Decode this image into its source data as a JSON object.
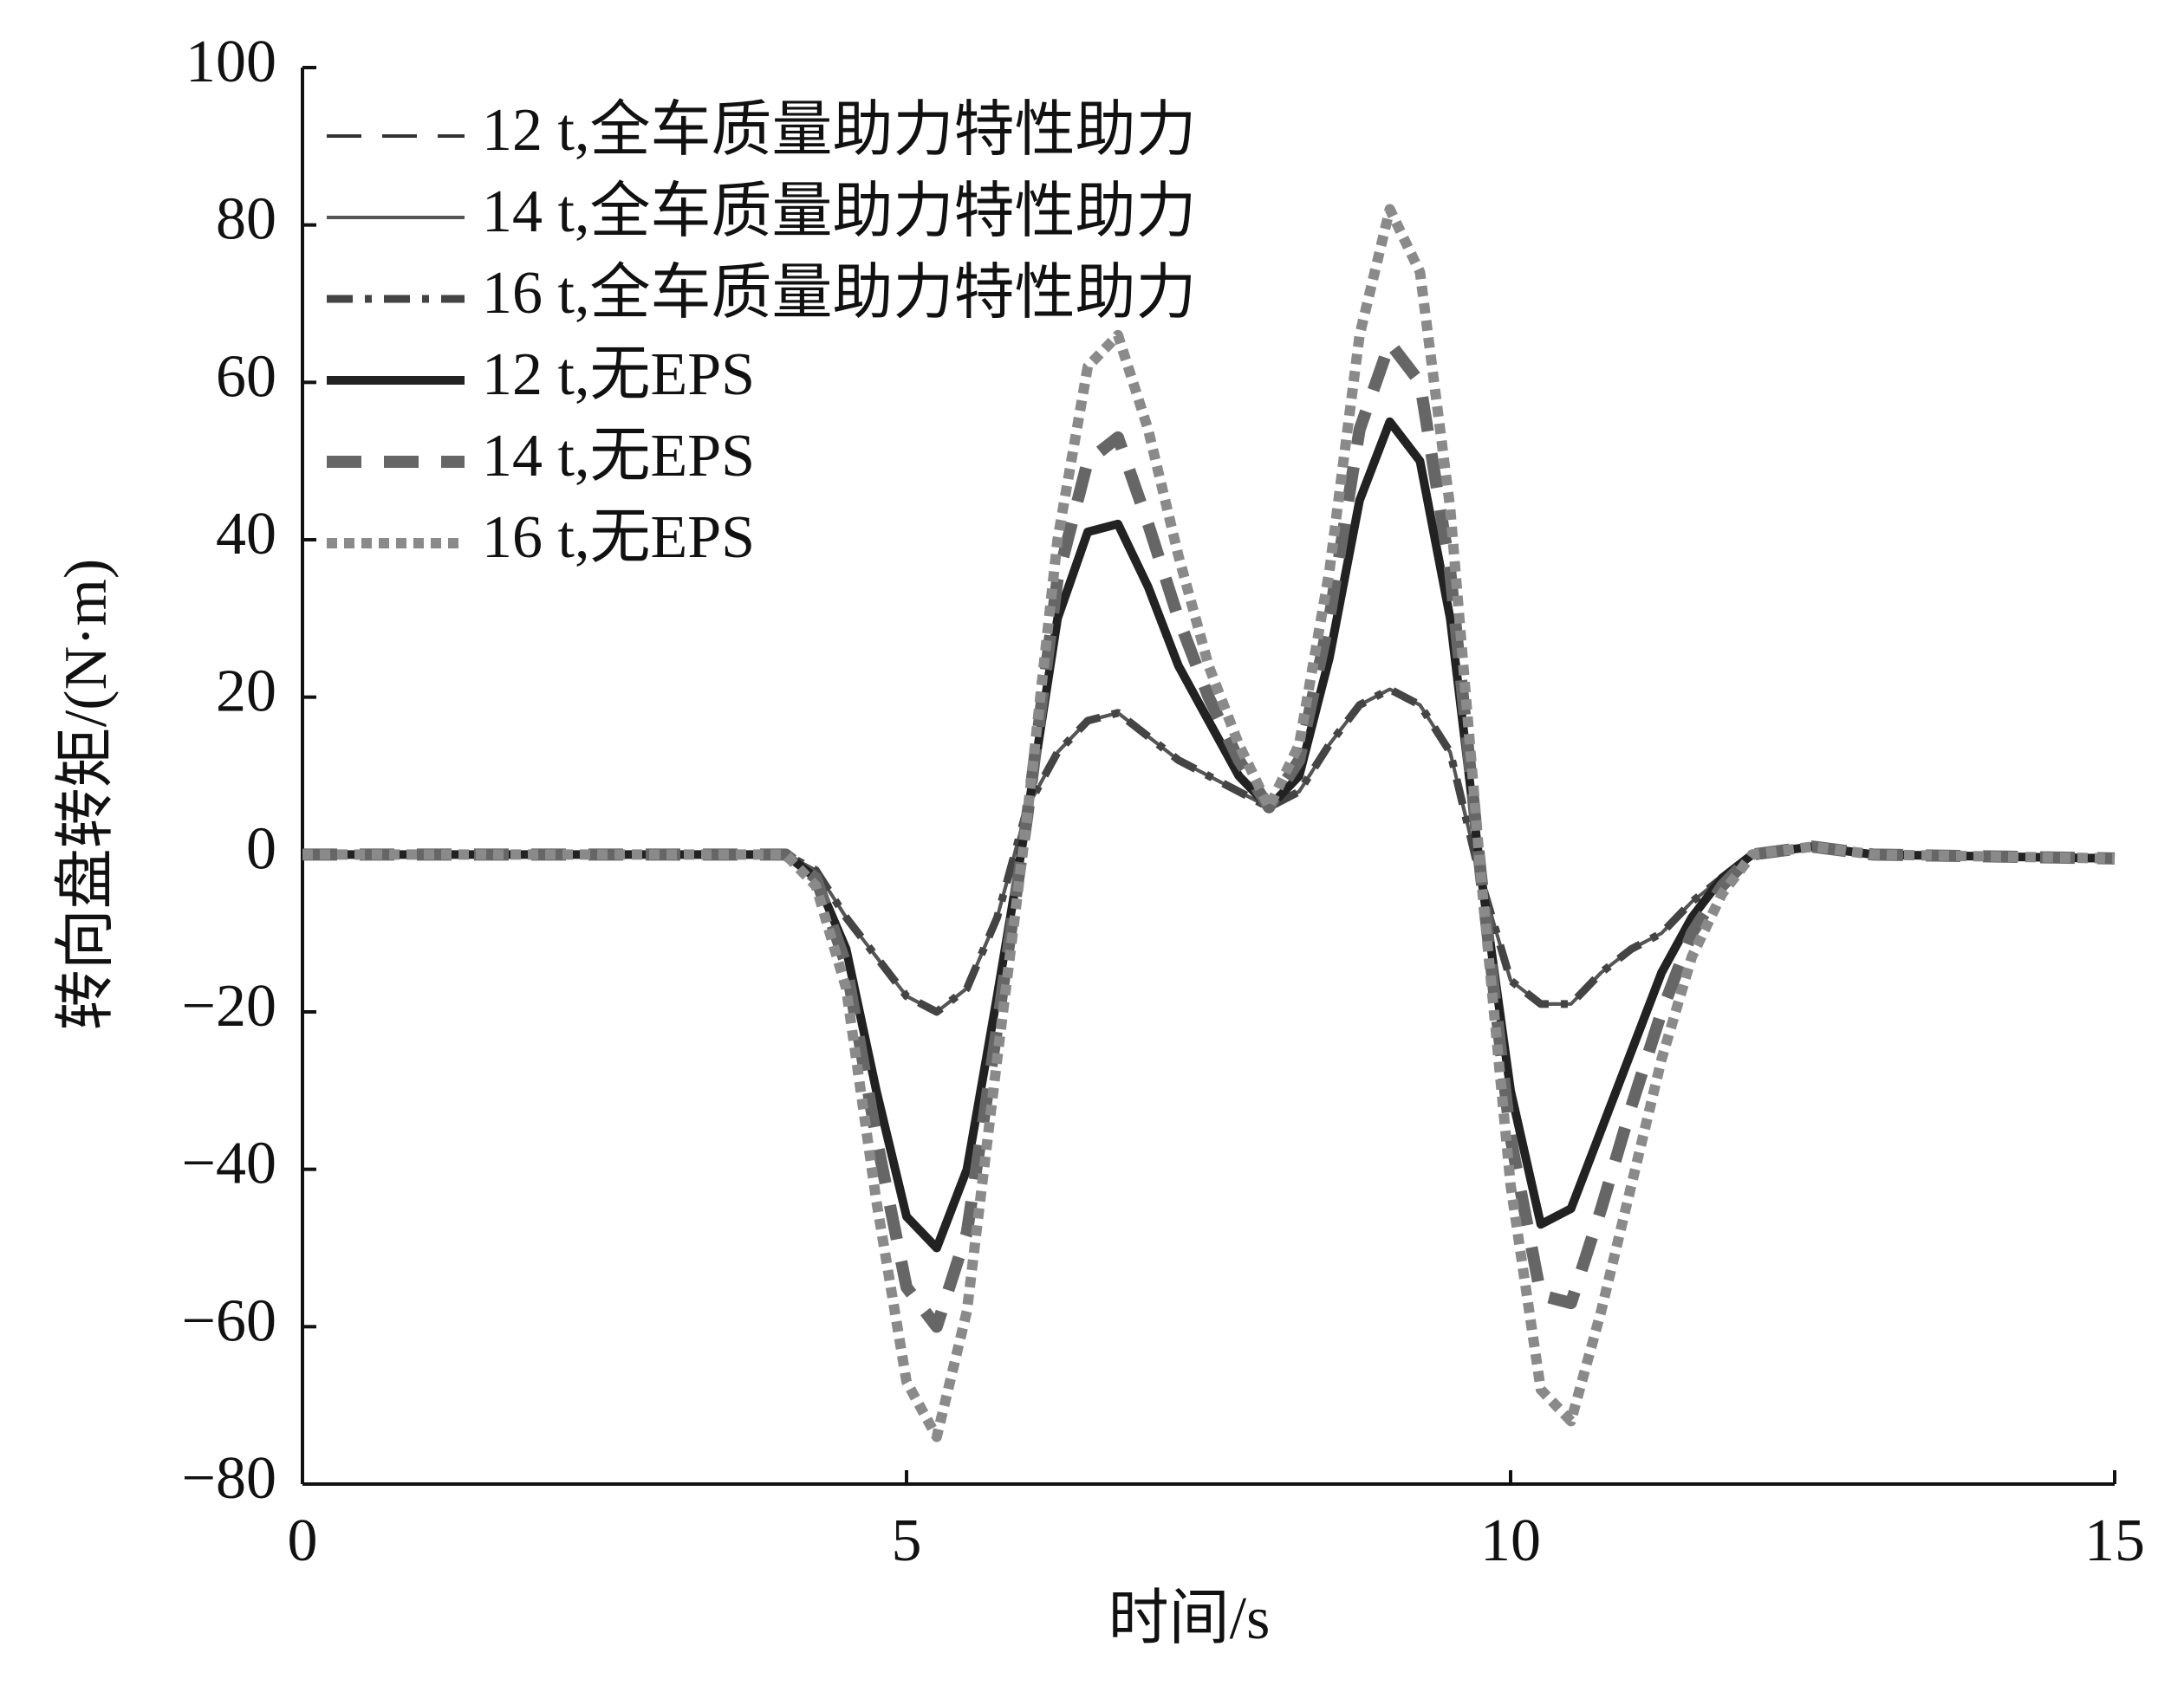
{
  "chart_data": {
    "type": "line",
    "x_label": "时间/s",
    "y_label": "转向盘转矩/(N·m)",
    "x": [
      0,
      3.5,
      4,
      4.25,
      4.5,
      4.75,
      5,
      5.25,
      5.5,
      5.75,
      6,
      6.25,
      6.5,
      6.75,
      7,
      7.25,
      7.5,
      7.75,
      8,
      8.25,
      8.5,
      8.75,
      9,
      9.25,
      9.5,
      9.75,
      10,
      10.25,
      10.5,
      10.75,
      11,
      11.25,
      11.5,
      11.75,
      12,
      12.5,
      13,
      15
    ],
    "series": [
      {
        "name": "12 t,全车质量助力特性助力",
        "color": "#333333",
        "line_style": "dashed",
        "values": [
          0,
          0,
          0,
          -2,
          -8,
          -13,
          -18,
          -20,
          -17,
          -8,
          6,
          13,
          17,
          18,
          15,
          12,
          10,
          8,
          6,
          8,
          14,
          19,
          21,
          19,
          13,
          -3,
          -16,
          -19,
          -19,
          -15,
          -12,
          -10,
          -6,
          -3,
          0,
          1,
          0,
          -0.5
        ]
      },
      {
        "name": "14 t,全车质量助力特性助力",
        "color": "#555555",
        "line_style": "solid-thin",
        "values": [
          0,
          0,
          0,
          -2,
          -8,
          -13,
          -18,
          -20,
          -17,
          -8,
          6,
          13,
          17,
          18,
          15,
          12,
          10,
          8,
          6,
          8,
          14,
          19,
          21,
          19,
          13,
          -3,
          -16,
          -19,
          -19,
          -15,
          -12,
          -10,
          -6,
          -3,
          0,
          1,
          0,
          -0.5
        ]
      },
      {
        "name": "16 t,全车质量助力特性助力",
        "color": "#444444",
        "line_style": "dash-dot",
        "values": [
          0,
          0,
          0,
          -2,
          -8,
          -13,
          -18,
          -20,
          -17,
          -8,
          6,
          13,
          17,
          18,
          15,
          12,
          10,
          8,
          6,
          8,
          14,
          19,
          21,
          19,
          13,
          -3,
          -16,
          -19,
          -19,
          -15,
          -12,
          -10,
          -6,
          -3,
          0,
          1,
          0,
          -0.5
        ]
      },
      {
        "name": "12 t,无EPS",
        "color": "#222222",
        "line_style": "solid-thick",
        "values": [
          0,
          0,
          0,
          -3,
          -12,
          -30,
          -46,
          -50,
          -40,
          -18,
          5,
          30,
          41,
          42,
          34,
          24,
          17,
          10,
          6,
          10,
          25,
          45,
          55,
          50,
          30,
          -2,
          -30,
          -47,
          -45,
          -35,
          -25,
          -15,
          -8,
          -3,
          0,
          1,
          0,
          -0.5
        ]
      },
      {
        "name": "14 t,无EPS",
        "color": "#666666",
        "line_style": "dashed-thick",
        "values": [
          0,
          0,
          0,
          -3,
          -14,
          -36,
          -55,
          -60,
          -48,
          -22,
          5,
          35,
          50,
          53,
          42,
          30,
          20,
          12,
          6,
          12,
          30,
          54,
          65,
          60,
          36,
          -2,
          -36,
          -56,
          -57,
          -45,
          -32,
          -20,
          -10,
          -4,
          0,
          1,
          0,
          -0.5
        ]
      },
      {
        "name": "16 t,无EPS",
        "color": "#8a8a8a",
        "line_style": "dotted-thick",
        "values": [
          0,
          0,
          0,
          -4,
          -17,
          -44,
          -67,
          -74,
          -58,
          -26,
          5,
          40,
          62,
          66,
          54,
          38,
          24,
          14,
          6,
          14,
          36,
          66,
          82,
          74,
          44,
          -2,
          -42,
          -68,
          -72,
          -58,
          -42,
          -26,
          -13,
          -5,
          0,
          1,
          0,
          -0.5
        ]
      }
    ],
    "xlim": [
      0,
      15
    ],
    "xticks": [
      0,
      5,
      10,
      15
    ],
    "ylim": [
      -80,
      100
    ],
    "yticks": [
      {
        "value": -80,
        "label": "−80"
      },
      {
        "value": -60,
        "label": "−60"
      },
      {
        "value": -40,
        "label": "−40"
      },
      {
        "value": -20,
        "label": "−20"
      },
      0,
      20,
      40,
      60,
      80,
      100
    ],
    "grid": false,
    "legend": "upper left"
  }
}
